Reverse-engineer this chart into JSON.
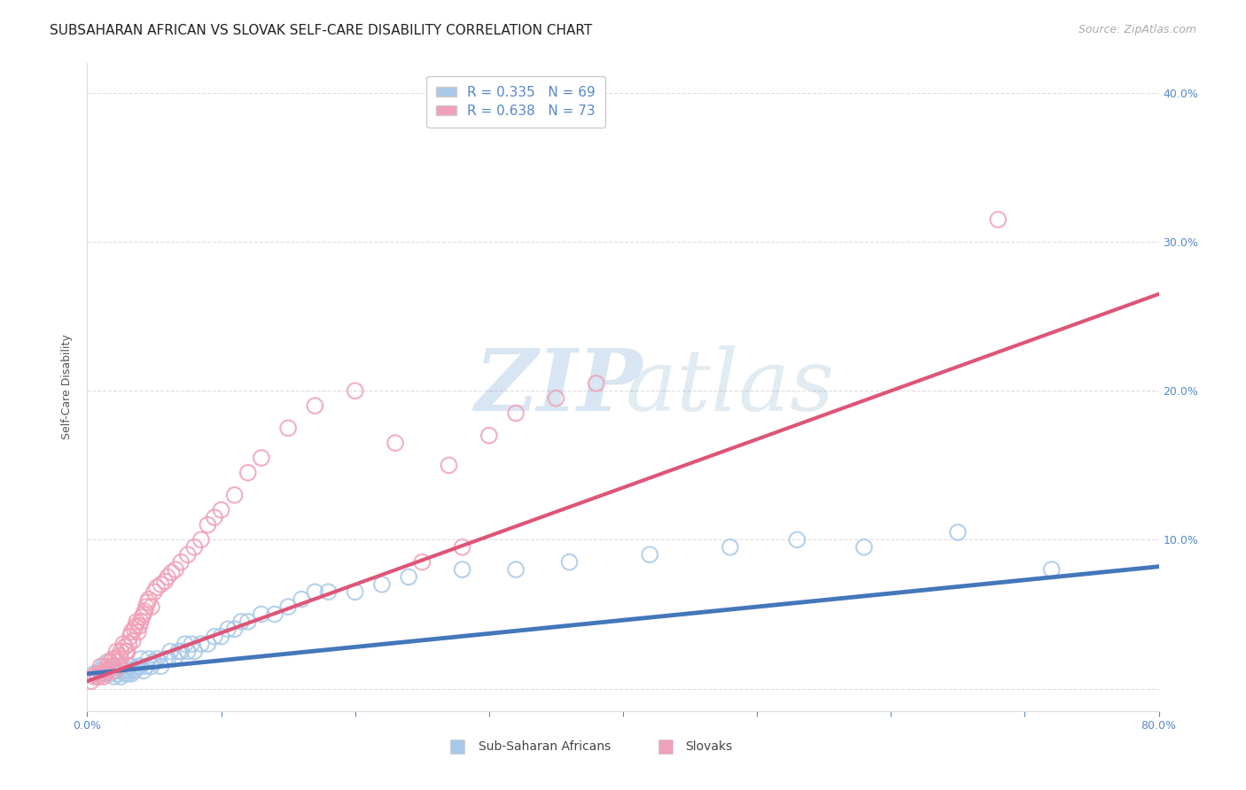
{
  "title": "SUBSAHARAN AFRICAN VS SLOVAK SELF-CARE DISABILITY CORRELATION CHART",
  "source": "Source: ZipAtlas.com",
  "ylabel": "Self-Care Disability",
  "xlabel": "",
  "xlim": [
    0.0,
    0.8
  ],
  "ylim": [
    -0.015,
    0.42
  ],
  "xticks": [
    0.0,
    0.1,
    0.2,
    0.3,
    0.4,
    0.5,
    0.6,
    0.7,
    0.8
  ],
  "xtick_labels": [
    "0.0%",
    "",
    "",
    "",
    "",
    "",
    "",
    "",
    "80.0%"
  ],
  "yticks": [
    0.0,
    0.1,
    0.2,
    0.3,
    0.4
  ],
  "ytick_labels": [
    "",
    "10.0%",
    "20.0%",
    "30.0%",
    "40.0%"
  ],
  "watermark_zip": "ZIP",
  "watermark_atlas": "atlas",
  "legend_r_blue": "R = 0.335",
  "legend_n_blue": "N = 69",
  "legend_r_pink": "R = 0.638",
  "legend_n_pink": "N = 73",
  "blue_color": "#a8c8e8",
  "pink_color": "#f0a0b8",
  "blue_line_color": "#4477bb",
  "pink_line_color": "#dd5577",
  "text_blue": "#5588cc",
  "background_color": "#ffffff",
  "grid_color": "#dddddd",
  "blue_scatter_x": [
    0.005,
    0.008,
    0.01,
    0.012,
    0.013,
    0.015,
    0.015,
    0.017,
    0.018,
    0.02,
    0.02,
    0.022,
    0.023,
    0.025,
    0.025,
    0.027,
    0.028,
    0.03,
    0.03,
    0.032,
    0.033,
    0.035,
    0.036,
    0.038,
    0.04,
    0.04,
    0.042,
    0.044,
    0.046,
    0.048,
    0.05,
    0.052,
    0.055,
    0.058,
    0.06,
    0.062,
    0.065,
    0.068,
    0.07,
    0.073,
    0.075,
    0.078,
    0.08,
    0.085,
    0.09,
    0.095,
    0.1,
    0.105,
    0.11,
    0.115,
    0.12,
    0.13,
    0.14,
    0.15,
    0.16,
    0.17,
    0.18,
    0.2,
    0.22,
    0.24,
    0.28,
    0.32,
    0.36,
    0.42,
    0.48,
    0.53,
    0.58,
    0.65,
    0.72
  ],
  "blue_scatter_y": [
    0.01,
    0.008,
    0.012,
    0.015,
    0.01,
    0.018,
    0.012,
    0.01,
    0.013,
    0.015,
    0.008,
    0.012,
    0.01,
    0.015,
    0.008,
    0.012,
    0.01,
    0.013,
    0.01,
    0.015,
    0.01,
    0.012,
    0.013,
    0.015,
    0.015,
    0.02,
    0.012,
    0.015,
    0.02,
    0.015,
    0.018,
    0.02,
    0.015,
    0.02,
    0.02,
    0.025,
    0.02,
    0.025,
    0.025,
    0.03,
    0.025,
    0.03,
    0.025,
    0.03,
    0.03,
    0.035,
    0.035,
    0.04,
    0.04,
    0.045,
    0.045,
    0.05,
    0.05,
    0.055,
    0.06,
    0.065,
    0.065,
    0.065,
    0.07,
    0.075,
    0.08,
    0.08,
    0.085,
    0.09,
    0.095,
    0.1,
    0.095,
    0.105,
    0.08
  ],
  "pink_scatter_x": [
    0.003,
    0.005,
    0.007,
    0.008,
    0.01,
    0.01,
    0.012,
    0.013,
    0.014,
    0.015,
    0.015,
    0.017,
    0.018,
    0.019,
    0.02,
    0.02,
    0.021,
    0.022,
    0.023,
    0.023,
    0.024,
    0.025,
    0.025,
    0.027,
    0.028,
    0.029,
    0.03,
    0.031,
    0.032,
    0.033,
    0.034,
    0.035,
    0.036,
    0.037,
    0.038,
    0.039,
    0.04,
    0.041,
    0.042,
    0.043,
    0.044,
    0.045,
    0.046,
    0.048,
    0.05,
    0.052,
    0.055,
    0.058,
    0.06,
    0.063,
    0.066,
    0.07,
    0.075,
    0.08,
    0.085,
    0.09,
    0.095,
    0.1,
    0.11,
    0.12,
    0.13,
    0.15,
    0.17,
    0.2,
    0.23,
    0.27,
    0.3,
    0.32,
    0.35,
    0.38,
    0.25,
    0.28,
    0.68
  ],
  "pink_scatter_y": [
    0.005,
    0.008,
    0.01,
    0.008,
    0.01,
    0.015,
    0.008,
    0.012,
    0.01,
    0.015,
    0.012,
    0.018,
    0.015,
    0.02,
    0.015,
    0.012,
    0.02,
    0.025,
    0.018,
    0.015,
    0.022,
    0.025,
    0.02,
    0.03,
    0.028,
    0.025,
    0.025,
    0.03,
    0.035,
    0.038,
    0.032,
    0.04,
    0.042,
    0.045,
    0.038,
    0.042,
    0.045,
    0.048,
    0.05,
    0.052,
    0.055,
    0.058,
    0.06,
    0.055,
    0.065,
    0.068,
    0.07,
    0.072,
    0.075,
    0.078,
    0.08,
    0.085,
    0.09,
    0.095,
    0.1,
    0.11,
    0.115,
    0.12,
    0.13,
    0.145,
    0.155,
    0.175,
    0.19,
    0.2,
    0.165,
    0.15,
    0.17,
    0.185,
    0.195,
    0.205,
    0.085,
    0.095,
    0.315
  ],
  "blue_line_x": [
    0.0,
    0.8
  ],
  "blue_line_y": [
    0.01,
    0.082
  ],
  "pink_line_x": [
    0.0,
    0.8
  ],
  "pink_line_y": [
    0.005,
    0.265
  ],
  "title_fontsize": 11,
  "source_fontsize": 9,
  "axis_label_fontsize": 9,
  "tick_fontsize": 9,
  "legend_fontsize": 11
}
